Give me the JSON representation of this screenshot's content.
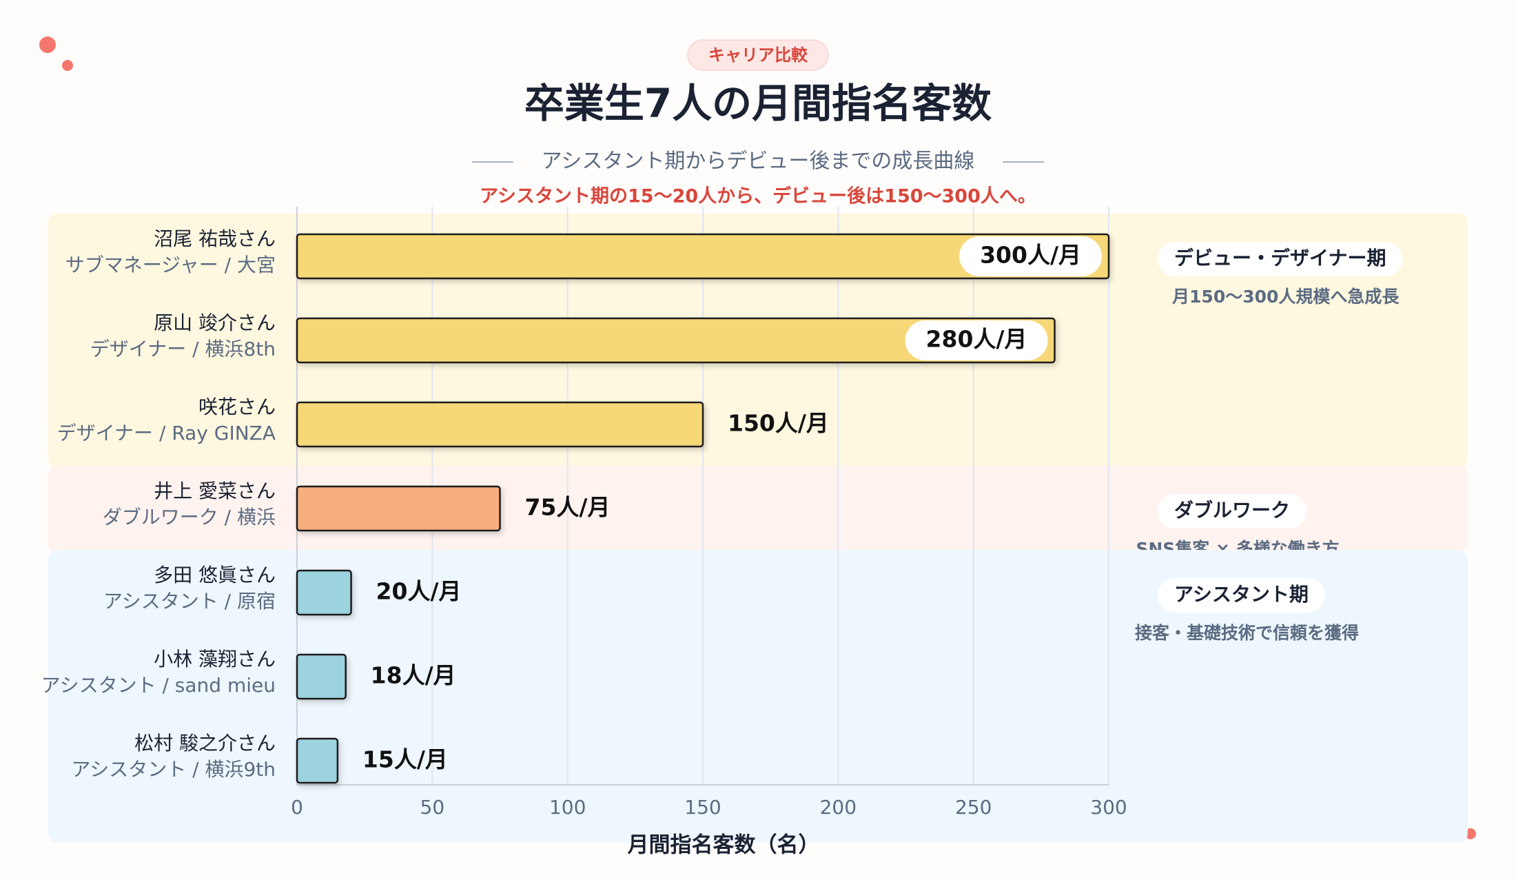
{
  "chart_data": {
    "type": "bar",
    "orientation": "horizontal",
    "badge": "キャリア比較",
    "title": "卒業生7人の月間指名客数",
    "subtitle": "アシスタント期からデビュー後までの成長曲線",
    "highlight": "アシスタント期の15〜20人から、デビュー後は150〜300人へ。",
    "xlabel": "月間指名客数（名）",
    "categories": [
      {
        "name": "沼尾 祐哉さん",
        "role": "サブマネージャー / 大宮"
      },
      {
        "name": "原山 竣介さん",
        "role": "デザイナー / 横浜8th"
      },
      {
        "name": "咲花さん",
        "role": "デザイナー / Ray GINZA"
      },
      {
        "name": "井上 愛菜さん",
        "role": "ダブルワーク / 横浜"
      },
      {
        "name": "多田 悠眞さん",
        "role": "アシスタント / 原宿"
      },
      {
        "name": "小林 藻翔さん",
        "role": "アシスタント / sand mieu"
      },
      {
        "name": "松村 駿之介さん",
        "role": "アシスタント / 横浜9th"
      }
    ],
    "series": [
      {
        "name": "デビュー・デザイナー期",
        "note": "月150〜300人規模へ急成長",
        "color": "#f6d878",
        "band_color": "#fff8e0",
        "values": [
          300,
          280,
          150,
          null,
          null,
          null,
          null
        ],
        "value_labels": [
          "300人/月",
          "280人/月",
          "150人/月",
          null,
          null,
          null,
          null
        ]
      },
      {
        "name": "ダブルワーク",
        "note": "SNS集客 × 多様な働き方",
        "color": "#f6ae7b",
        "band_color": "#fff3ef",
        "values": [
          null,
          null,
          null,
          75,
          null,
          null,
          null
        ],
        "value_labels": [
          null,
          null,
          null,
          "75人/月",
          null,
          null,
          null
        ]
      },
      {
        "name": "アシスタント期",
        "note": "接客・基礎技術で信頼を獲得",
        "color": "#9dd2df",
        "band_color": "#eef7fd",
        "values": [
          null,
          null,
          null,
          null,
          20,
          18,
          15
        ],
        "value_labels": [
          null,
          null,
          null,
          null,
          "20人/月",
          "18人/月",
          "15人/月"
        ]
      }
    ],
    "xlim": [
      0,
      300
    ],
    "xticks": [
      0,
      50,
      100,
      150,
      200,
      250,
      300
    ],
    "grid": true
  }
}
